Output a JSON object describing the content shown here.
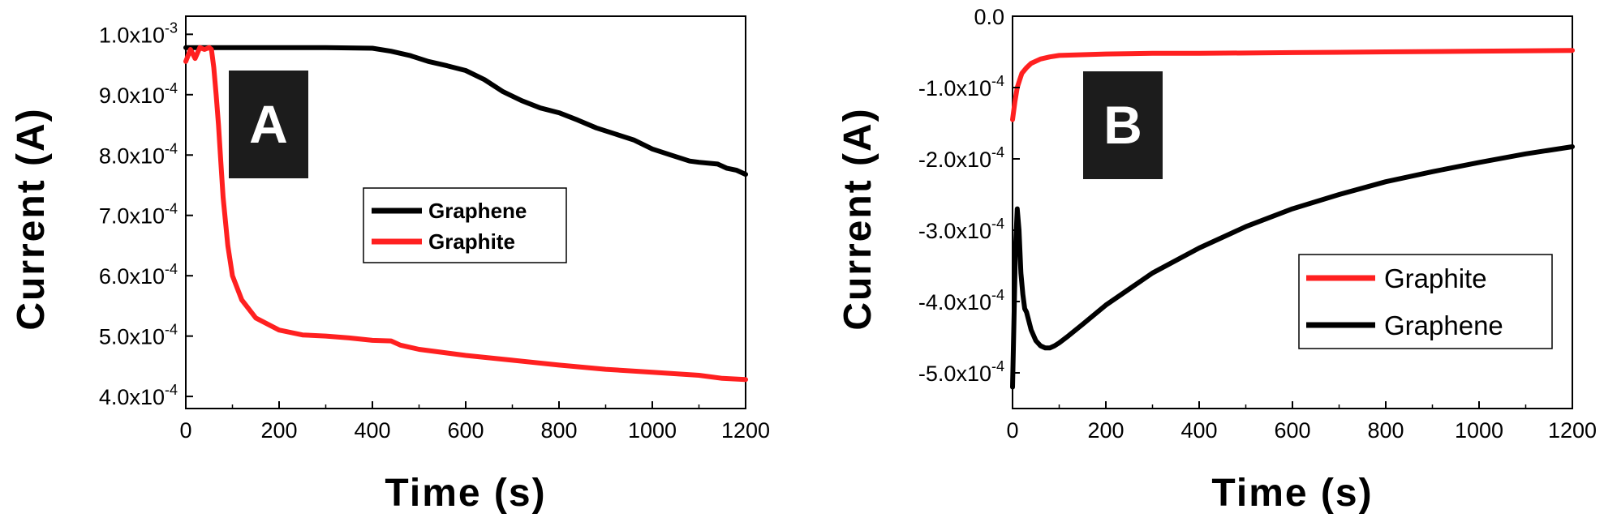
{
  "chart_data": [
    {
      "type": "line",
      "panel_label": "A",
      "xlabel": "Time (s)",
      "ylabel": "Current (A)",
      "xlim": [
        0,
        1200
      ],
      "ylim": [
        380,
        1030
      ],
      "y_unit_scale": "1e-6 A",
      "x_ticks": [
        "0",
        "200",
        "400",
        "600",
        "800",
        "1000",
        "1200"
      ],
      "y_ticks": [
        {
          "value": 1000,
          "label": "1.0x10",
          "exp": "-3"
        },
        {
          "value": 900,
          "label": "9.0x10",
          "exp": "-4"
        },
        {
          "value": 800,
          "label": "8.0x10",
          "exp": "-4"
        },
        {
          "value": 700,
          "label": "7.0x10",
          "exp": "-4"
        },
        {
          "value": 600,
          "label": "6.0x10",
          "exp": "-4"
        },
        {
          "value": 500,
          "label": "5.0x10",
          "exp": "-4"
        },
        {
          "value": 400,
          "label": "4.0x10",
          "exp": "-4"
        }
      ],
      "legend_position": "center",
      "series": [
        {
          "name": "Graphene",
          "color": "#000000",
          "x": [
            0,
            50,
            100,
            200,
            300,
            400,
            440,
            480,
            520,
            560,
            600,
            640,
            680,
            720,
            760,
            800,
            840,
            880,
            920,
            960,
            1000,
            1040,
            1080,
            1100,
            1140,
            1160,
            1180,
            1200
          ],
          "y": [
            978,
            978,
            978,
            978,
            978,
            977,
            972,
            965,
            955,
            948,
            940,
            925,
            905,
            890,
            878,
            870,
            858,
            845,
            835,
            825,
            810,
            800,
            790,
            788,
            785,
            778,
            775,
            768
          ]
        },
        {
          "name": "Graphite",
          "color": "#ff2020",
          "x": [
            0,
            10,
            20,
            30,
            40,
            50,
            55,
            60,
            65,
            70,
            75,
            80,
            90,
            100,
            120,
            150,
            200,
            250,
            300,
            350,
            400,
            440,
            460,
            500,
            600,
            700,
            800,
            900,
            1000,
            1100,
            1150,
            1200
          ],
          "y": [
            955,
            975,
            960,
            978,
            975,
            978,
            975,
            945,
            900,
            850,
            790,
            730,
            650,
            600,
            560,
            530,
            510,
            502,
            500,
            497,
            493,
            492,
            485,
            478,
            468,
            460,
            452,
            445,
            440,
            435,
            430,
            428
          ]
        }
      ]
    },
    {
      "type": "line",
      "panel_label": "B",
      "xlabel": "Time (s)",
      "ylabel": "Current (A)",
      "xlim": [
        0,
        1200
      ],
      "ylim": [
        -550,
        0
      ],
      "y_unit_scale": "1e-6 A",
      "x_ticks": [
        "0",
        "200",
        "400",
        "600",
        "800",
        "1000",
        "1200"
      ],
      "y_ticks": [
        {
          "value": 0,
          "label": "0.0",
          "exp": ""
        },
        {
          "value": -100,
          "label": "-1.0x10",
          "exp": "-4"
        },
        {
          "value": -200,
          "label": "-2.0x10",
          "exp": "-4"
        },
        {
          "value": -300,
          "label": "-3.0x10",
          "exp": "-4"
        },
        {
          "value": -400,
          "label": "-4.0x10",
          "exp": "-4"
        },
        {
          "value": -500,
          "label": "-5.0x10",
          "exp": "-4"
        }
      ],
      "legend_position": "bottom-right",
      "series": [
        {
          "name": "Graphite",
          "color": "#ff2020",
          "x": [
            0,
            5,
            10,
            15,
            20,
            30,
            40,
            60,
            80,
            100,
            150,
            200,
            300,
            400,
            600,
            800,
            1000,
            1200
          ],
          "y": [
            -145,
            -120,
            -100,
            -90,
            -80,
            -72,
            -66,
            -60,
            -57,
            -55,
            -54,
            -53,
            -52,
            -52,
            -51,
            -50,
            -49,
            -48
          ]
        },
        {
          "name": "Graphene",
          "color": "#000000",
          "x": [
            0,
            3,
            6,
            10,
            14,
            18,
            22,
            26,
            30,
            40,
            50,
            60,
            70,
            80,
            90,
            100,
            120,
            150,
            200,
            300,
            400,
            500,
            600,
            700,
            800,
            900,
            1000,
            1100,
            1200
          ],
          "y": [
            -520,
            -430,
            -330,
            -270,
            -300,
            -360,
            -390,
            -410,
            -415,
            -440,
            -455,
            -462,
            -465,
            -465,
            -462,
            -458,
            -448,
            -432,
            -405,
            -360,
            -325,
            -295,
            -270,
            -250,
            -232,
            -218,
            -205,
            -193,
            -183
          ]
        }
      ]
    }
  ]
}
